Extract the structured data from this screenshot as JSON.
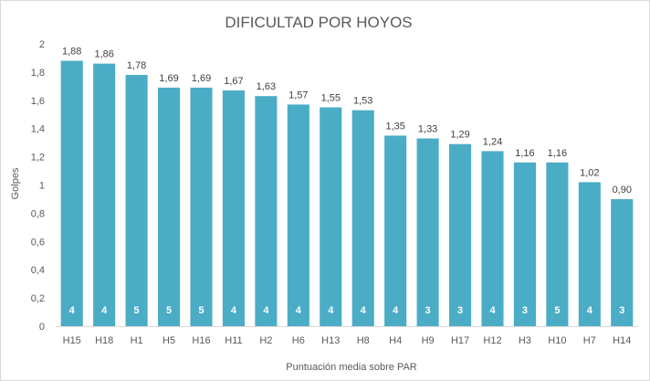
{
  "chart_data": {
    "type": "bar",
    "title": "DIFICULTAD POR HOYOS",
    "xlabel": "Puntuación media sobre PAR",
    "ylabel": "Golpes",
    "ylim": [
      0,
      2
    ],
    "yticks": [
      "0",
      "0,2",
      "0,4",
      "0,6",
      "0,8",
      "1",
      "1,2",
      "1,4",
      "1,6",
      "1,8",
      "2"
    ],
    "categories": [
      "H15",
      "H18",
      "H1",
      "H5",
      "H16",
      "H11",
      "H2",
      "H6",
      "H13",
      "H8",
      "H4",
      "H9",
      "H17",
      "H12",
      "H3",
      "H10",
      "H7",
      "H14"
    ],
    "values": [
      1.88,
      1.86,
      1.78,
      1.69,
      1.69,
      1.67,
      1.63,
      1.57,
      1.55,
      1.53,
      1.35,
      1.33,
      1.29,
      1.24,
      1.16,
      1.16,
      1.02,
      0.9
    ],
    "value_labels": [
      "1,88",
      "1,86",
      "1,78",
      "1,69",
      "1,69",
      "1,67",
      "1,63",
      "1,57",
      "1,55",
      "1,53",
      "1,35",
      "1,33",
      "1,29",
      "1,24",
      "1,16",
      "1,16",
      "1,02",
      "0,90"
    ],
    "par": [
      "4",
      "4",
      "5",
      "5",
      "5",
      "4",
      "4",
      "4",
      "4",
      "4",
      "4",
      "3",
      "3",
      "4",
      "3",
      "5",
      "4",
      "3"
    ],
    "bar_color": "#4BACC6",
    "grid": false,
    "legend": "none"
  }
}
